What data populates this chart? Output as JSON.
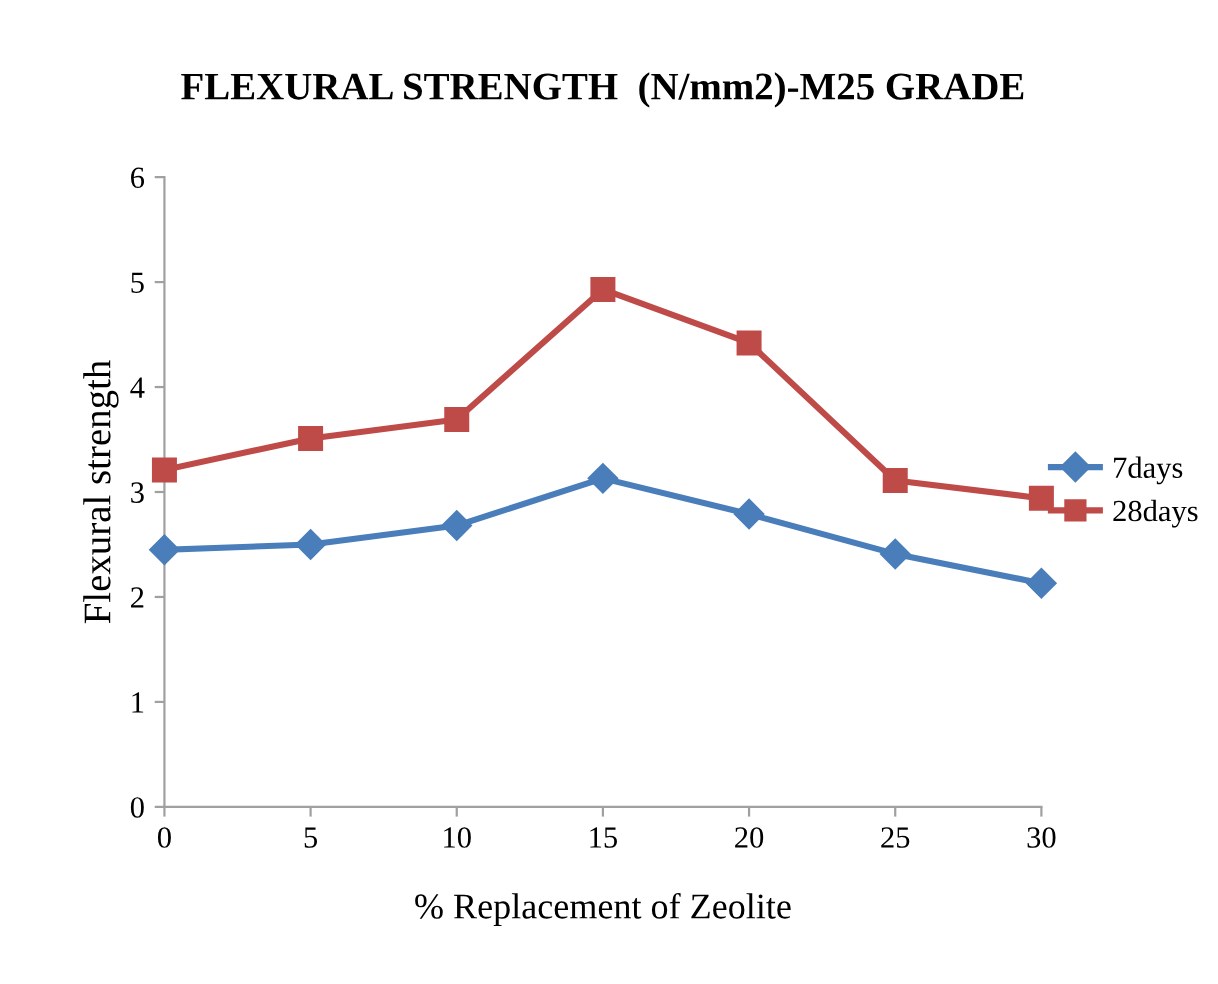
{
  "chart_data": {
    "type": "line",
    "title": "FLEXURAL STRENGTH  (N/mm2)-M25 GRADE",
    "xlabel": "% Replacement of Zeolite",
    "ylabel": "Flexural strength",
    "x": [
      0,
      5,
      10,
      15,
      20,
      25,
      30
    ],
    "series": [
      {
        "name": "7days",
        "color": "#4a7ebb",
        "marker": "diamond",
        "values": [
          2.45,
          2.5,
          2.68,
          3.13,
          2.79,
          2.41,
          2.13
        ]
      },
      {
        "name": "28days",
        "color": "#be4b48",
        "marker": "square",
        "values": [
          3.21,
          3.51,
          3.69,
          4.93,
          4.42,
          3.11,
          2.94
        ]
      }
    ],
    "xlim": [
      0,
      30
    ],
    "xticks": [
      0,
      5,
      10,
      15,
      20,
      25,
      30
    ],
    "ylim": [
      0,
      6
    ],
    "yticks": [
      0,
      1,
      2,
      3,
      4,
      5,
      6
    ],
    "grid": false,
    "legend": "right",
    "line_style": "solid"
  }
}
